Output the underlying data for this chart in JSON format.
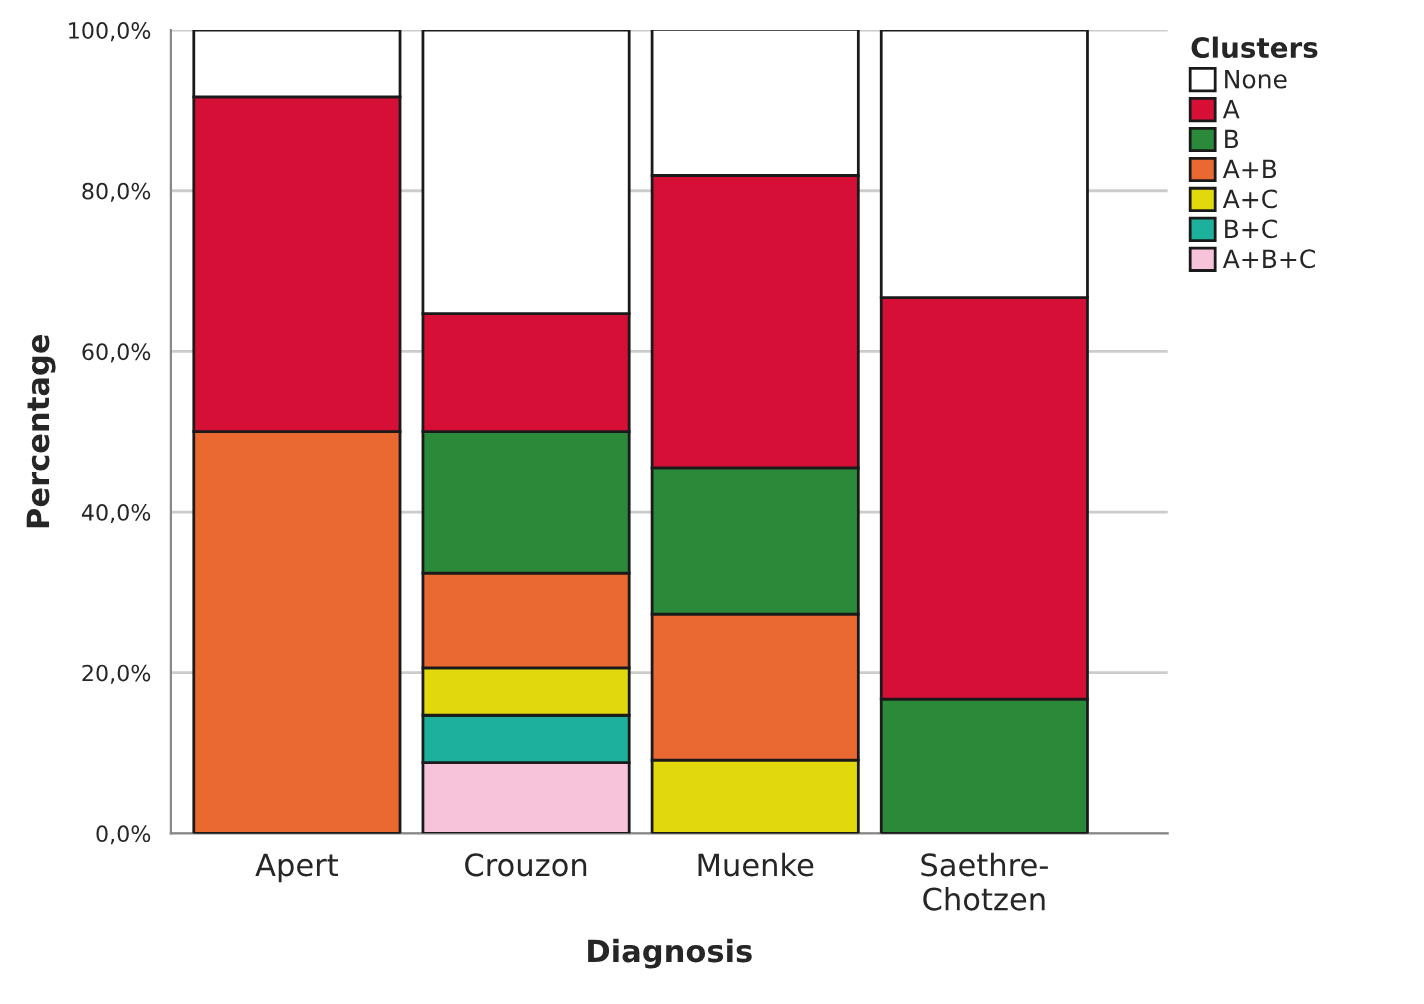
{
  "chart_data": {
    "type": "bar",
    "stacked": true,
    "xlabel": "Diagnosis",
    "ylabel": "Percentage",
    "legend_title": "Clusters",
    "legend": "top right",
    "grid": "y",
    "categories": [
      "Apert",
      "Crouzon",
      "Muenke",
      "Saethre-\nChotzen"
    ],
    "ylim": [
      0,
      100
    ],
    "yticks": [
      {
        "value": 0,
        "label": "0,0%"
      },
      {
        "value": 20,
        "label": "20,0%"
      },
      {
        "value": 40,
        "label": "40,0%"
      },
      {
        "value": 60,
        "label": "60,0%"
      },
      {
        "value": 80,
        "label": "80,0%"
      },
      {
        "value": 100,
        "label": "100,0%"
      }
    ],
    "series": [
      {
        "name": "A+B+C",
        "color": "#f7c3da",
        "values": [
          0,
          8.8,
          0,
          0
        ]
      },
      {
        "name": "B+C",
        "color": "#1db09c",
        "values": [
          0,
          5.9,
          0,
          0
        ]
      },
      {
        "name": "A+C",
        "color": "#e2d90c",
        "values": [
          0,
          5.9,
          9.1,
          0
        ]
      },
      {
        "name": "A+B",
        "color": "#ea6930",
        "values": [
          50,
          11.8,
          18.2,
          0
        ]
      },
      {
        "name": "B",
        "color": "#2a8a3a",
        "values": [
          0,
          17.6,
          18.2,
          16.7
        ]
      },
      {
        "name": "A",
        "color": "#d50f35",
        "values": [
          41.7,
          14.7,
          36.4,
          50
        ]
      },
      {
        "name": "None",
        "color": "#ffffff",
        "values": [
          8.3,
          35.3,
          18.2,
          33.3
        ]
      }
    ]
  }
}
